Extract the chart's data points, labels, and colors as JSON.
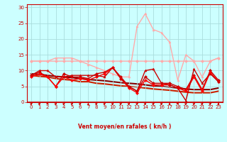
{
  "x": [
    0,
    1,
    2,
    3,
    4,
    5,
    6,
    7,
    8,
    9,
    10,
    11,
    12,
    13,
    14,
    15,
    16,
    17,
    18,
    19,
    20,
    21,
    22,
    23
  ],
  "series": [
    {
      "y": [
        13,
        13,
        13,
        13,
        13,
        13,
        13,
        13,
        13,
        13,
        13,
        13,
        13,
        13,
        13,
        13,
        13,
        13,
        13,
        13,
        13,
        13,
        13,
        14
      ],
      "color": "#ffaaaa",
      "marker": "D",
      "markersize": 2,
      "linewidth": 1.0,
      "zorder": 2
    },
    {
      "y": [
        13,
        13,
        13,
        14,
        14,
        14,
        13,
        12,
        11,
        10,
        9,
        8,
        8,
        24,
        28,
        23,
        22,
        19,
        7,
        15,
        13,
        8,
        13,
        14
      ],
      "color": "#ffaaaa",
      "marker": "^",
      "markersize": 2,
      "linewidth": 1.0,
      "zorder": 2
    },
    {
      "y": [
        9.0,
        8.8,
        8.5,
        8.2,
        8.0,
        7.8,
        7.5,
        7.2,
        7.0,
        6.8,
        6.5,
        6.2,
        6.0,
        5.8,
        5.5,
        5.2,
        5.0,
        4.8,
        4.5,
        4.2,
        4.0,
        4.0,
        4.0,
        4.5
      ],
      "color": "#880000",
      "marker": null,
      "markersize": 0,
      "linewidth": 1.5,
      "zorder": 1
    },
    {
      "y": [
        8.5,
        8.2,
        8.0,
        7.5,
        7.2,
        7.0,
        6.5,
        6.5,
        6.0,
        5.8,
        5.5,
        5.2,
        5.0,
        4.8,
        4.5,
        4.2,
        4.0,
        3.8,
        3.5,
        3.2,
        3.0,
        3.0,
        3.0,
        3.5
      ],
      "color": "#cc2200",
      "marker": null,
      "markersize": 0,
      "linewidth": 1.5,
      "zorder": 1
    },
    {
      "y": [
        8.5,
        9.5,
        8.0,
        5.0,
        9.0,
        8.0,
        8.0,
        7.5,
        9.0,
        9.5,
        11.0,
        8.0,
        5.0,
        3.5,
        8.0,
        6.0,
        6.0,
        6.0,
        5.0,
        4.0,
        8.5,
        4.0,
        10.0,
        7.0
      ],
      "color": "#cc0000",
      "marker": "D",
      "markersize": 2,
      "linewidth": 1.0,
      "zorder": 3
    },
    {
      "y": [
        8.0,
        9.0,
        8.0,
        5.0,
        8.0,
        7.0,
        7.5,
        7.0,
        8.0,
        9.0,
        11.0,
        7.5,
        4.5,
        3.0,
        7.0,
        5.5,
        5.5,
        5.5,
        4.5,
        3.5,
        8.0,
        3.5,
        9.5,
        6.5
      ],
      "color": "#ff0000",
      "marker": "D",
      "markersize": 2,
      "linewidth": 1.0,
      "zorder": 3
    },
    {
      "y": [
        8.5,
        10.0,
        10.0,
        8.0,
        8.0,
        8.5,
        8.5,
        8.5,
        8.5,
        8.0,
        11.0,
        7.5,
        5.0,
        3.5,
        10.0,
        10.5,
        6.0,
        5.5,
        4.5,
        0.5,
        10.5,
        6.0,
        9.0,
        6.5
      ],
      "color": "#cc0000",
      "marker": "^",
      "markersize": 2,
      "linewidth": 1.0,
      "zorder": 3
    }
  ],
  "arrow_angles": [
    45,
    45,
    135,
    45,
    45,
    45,
    45,
    0,
    45,
    45,
    45,
    45,
    45,
    45,
    45,
    45,
    45,
    0,
    135,
    45,
    45,
    45,
    45,
    0
  ],
  "xlabel": "Vent moyen/en rafales ( kn/h )",
  "xlim": [
    -0.5,
    23.5
  ],
  "ylim": [
    0,
    31
  ],
  "yticks": [
    0,
    5,
    10,
    15,
    20,
    25,
    30
  ],
  "xticks": [
    0,
    1,
    2,
    3,
    4,
    5,
    6,
    7,
    8,
    9,
    10,
    11,
    12,
    13,
    14,
    15,
    16,
    17,
    18,
    19,
    20,
    21,
    22,
    23
  ],
  "bg_color": "#ccffff",
  "grid_color": "#aadddd",
  "text_color": "#cc0000",
  "arrow_color": "#cc0000",
  "spine_color": "#cc0000"
}
